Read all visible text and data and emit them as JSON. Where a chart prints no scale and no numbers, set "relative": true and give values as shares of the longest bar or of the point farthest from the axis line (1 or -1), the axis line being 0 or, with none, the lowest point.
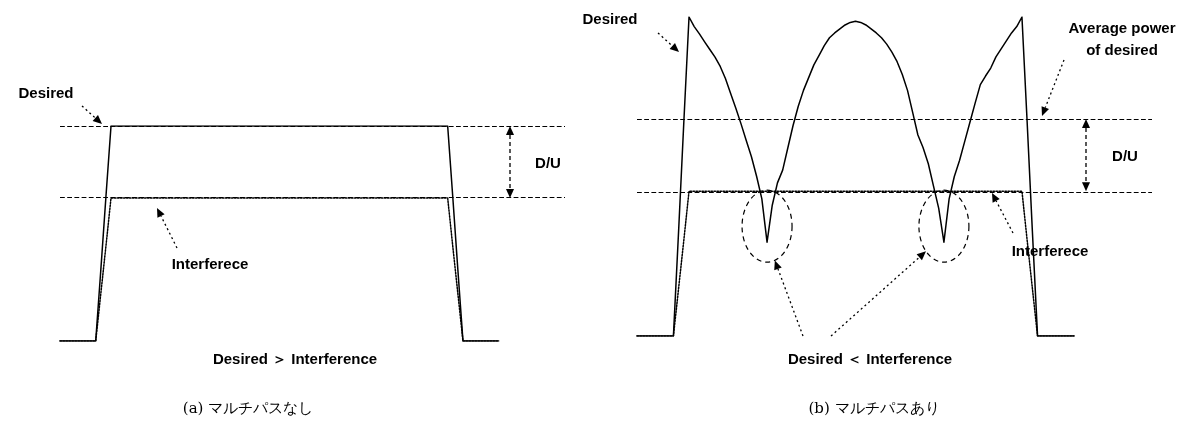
{
  "chart_data": [
    {
      "type": "line",
      "title": "(a) マルチパスなし",
      "relative": true,
      "categories": [
        null,
        null,
        null,
        null,
        null,
        null,
        null,
        null,
        null,
        null,
        null,
        null,
        null,
        null,
        null,
        null,
        null,
        null,
        null,
        null,
        null,
        null,
        null,
        null,
        null,
        null,
        null,
        null,
        null,
        null,
        null,
        null,
        null,
        null,
        null,
        null,
        null,
        null,
        null,
        null,
        null,
        null,
        null,
        null,
        null,
        null,
        null,
        null,
        null,
        null,
        null,
        null,
        null,
        null,
        null,
        null,
        null,
        null,
        null,
        null,
        null,
        null,
        null,
        null,
        null,
        null,
        null,
        null,
        null,
        null,
        null,
        null,
        null,
        null,
        null,
        null,
        null,
        null,
        null,
        null,
        null,
        null,
        null,
        null,
        null,
        null,
        null,
        null,
        null,
        null,
        null,
        null,
        null,
        null,
        null,
        null,
        null,
        null,
        null,
        null
      ],
      "series": [
        {
          "color": "#000000",
          "line_style": "solid",
          "values": [
            0,
            0,
            0,
            0,
            0,
            0,
            0,
            0,
            0.33,
            0.67,
            1,
            1,
            1,
            1,
            1,
            1,
            1,
            1,
            1,
            1,
            1,
            1,
            1,
            1,
            1,
            1,
            1,
            1,
            1,
            1,
            1,
            1,
            1,
            1,
            1,
            1,
            1,
            1,
            1,
            1,
            1,
            1,
            1,
            1,
            1,
            1,
            1,
            1,
            1,
            1,
            1,
            1,
            1,
            1,
            1,
            1,
            1,
            1,
            1,
            1,
            1,
            1,
            1,
            1,
            1,
            1,
            1,
            1,
            1,
            1,
            1,
            1,
            1,
            1,
            1,
            1,
            1,
            0.67,
            0.33,
            0,
            0,
            0,
            0,
            0,
            0,
            0,
            0,
            null,
            null,
            null,
            null,
            null,
            null,
            null,
            null,
            null,
            null,
            null,
            null,
            null
          ]
        },
        {
          "color": "#000000",
          "line_style": "dotted",
          "values": [
            0,
            0,
            0,
            0,
            0,
            0,
            0,
            0,
            0.22,
            0.44,
            0.665,
            0.665,
            0.665,
            0.665,
            0.665,
            0.665,
            0.665,
            0.665,
            0.665,
            0.665,
            0.665,
            0.665,
            0.665,
            0.665,
            0.665,
            0.665,
            0.665,
            0.665,
            0.665,
            0.665,
            0.665,
            0.665,
            0.665,
            0.665,
            0.665,
            0.665,
            0.665,
            0.665,
            0.665,
            0.665,
            0.665,
            0.665,
            0.665,
            0.665,
            0.665,
            0.665,
            0.665,
            0.665,
            0.665,
            0.665,
            0.665,
            0.665,
            0.665,
            0.665,
            0.665,
            0.665,
            0.665,
            0.665,
            0.665,
            0.665,
            0.665,
            0.665,
            0.665,
            0.665,
            0.665,
            0.665,
            0.665,
            0.665,
            0.665,
            0.665,
            0.665,
            0.665,
            0.665,
            0.665,
            0.665,
            0.665,
            0.665,
            0.44,
            0.22,
            0,
            0,
            0,
            0,
            0,
            0,
            0,
            0,
            null,
            null,
            null,
            null,
            null,
            null,
            null,
            null,
            null,
            null,
            null,
            null,
            null
          ]
        }
      ],
      "ref_lines": [
        {
          "axis": "y",
          "value": 1,
          "color": "#000000",
          "line_style": "dashed"
        },
        {
          "axis": "y",
          "value": 0.665,
          "color": "#000000",
          "line_style": "dashed"
        }
      ],
      "annotations": [
        "Desired",
        "Interferece",
        "D/U",
        "Desired ＞ Interference"
      ]
    },
    {
      "type": "line",
      "title": "(b) マルチパスあり",
      "relative": true,
      "categories": [
        null,
        null,
        null,
        null,
        null,
        null,
        null,
        null,
        null,
        null,
        null,
        null,
        null,
        null,
        null,
        null,
        null,
        null,
        null,
        null,
        null,
        null,
        null,
        null,
        null,
        null,
        null,
        null,
        null,
        null,
        null,
        null,
        null,
        null,
        null,
        null,
        null,
        null,
        null,
        null,
        null,
        null,
        null,
        null,
        null,
        null,
        null,
        null,
        null,
        null,
        null,
        null,
        null,
        null,
        null,
        null,
        null,
        null,
        null,
        null,
        null,
        null,
        null,
        null,
        null,
        null,
        null,
        null,
        null,
        null,
        null,
        null,
        null,
        null,
        null,
        null,
        null,
        null,
        null,
        null,
        null,
        null,
        null,
        null,
        null,
        null,
        null,
        null,
        null,
        null,
        null,
        null,
        null,
        null,
        null,
        null,
        null,
        null,
        null,
        null
      ],
      "series": [
        {
          "color": "#000000",
          "line_style": "solid",
          "values": [
            0,
            0,
            0,
            0,
            0,
            0,
            0,
            0,
            0.33,
            0.67,
            1,
            0.97,
            0.947,
            0.922,
            0.898,
            0.874,
            0.845,
            0.807,
            0.76,
            0.714,
            0.665,
            0.613,
            0.562,
            0.5,
            0.43,
            0.294,
            0.41,
            0.48,
            0.52,
            0.59,
            0.66,
            0.72,
            0.77,
            0.81,
            0.85,
            0.88,
            0.91,
            0.935,
            0.95,
            0.963,
            0.975,
            0.983,
            0.987,
            0.983,
            0.975,
            0.963,
            0.95,
            0.935,
            0.915,
            0.89,
            0.86,
            0.82,
            0.77,
            0.7,
            0.63,
            0.59,
            0.54,
            0.47,
            0.4,
            0.294,
            0.43,
            0.5,
            0.55,
            0.61,
            0.67,
            0.73,
            0.788,
            0.815,
            0.84,
            0.875,
            0.9,
            0.925,
            0.95,
            0.97,
            1,
            0.67,
            0.33,
            0,
            0,
            0,
            0,
            0,
            0,
            0,
            0,
            null,
            null,
            null,
            null,
            null,
            null,
            null,
            null,
            null,
            null,
            null,
            null,
            null,
            null,
            null
          ]
        },
        {
          "color": "#000000",
          "line_style": "dotted",
          "values": [
            0,
            0,
            0,
            0,
            0,
            0,
            0,
            0,
            0.15,
            0.3,
            0.454,
            0.454,
            0.454,
            0.454,
            0.454,
            0.454,
            0.454,
            0.454,
            0.454,
            0.454,
            0.454,
            0.454,
            0.454,
            0.454,
            0.454,
            0.454,
            0.454,
            0.454,
            0.454,
            0.454,
            0.454,
            0.454,
            0.454,
            0.454,
            0.454,
            0.454,
            0.454,
            0.454,
            0.454,
            0.454,
            0.454,
            0.454,
            0.454,
            0.454,
            0.454,
            0.454,
            0.454,
            0.454,
            0.454,
            0.454,
            0.454,
            0.454,
            0.454,
            0.454,
            0.454,
            0.454,
            0.454,
            0.454,
            0.454,
            0.454,
            0.454,
            0.454,
            0.454,
            0.454,
            0.454,
            0.454,
            0.454,
            0.454,
            0.454,
            0.454,
            0.454,
            0.454,
            0.454,
            0.454,
            0.454,
            0.3,
            0.15,
            0,
            0,
            0,
            0,
            0,
            0,
            0,
            0,
            null,
            null,
            null,
            null,
            null,
            null,
            null,
            null,
            null,
            null,
            null,
            null,
            null,
            null,
            null
          ]
        }
      ],
      "ref_lines": [
        {
          "axis": "y",
          "value": 0.68,
          "color": "#000000",
          "line_style": "dashed"
        },
        {
          "axis": "y",
          "value": 0.454,
          "color": "#000000",
          "line_style": "dashed"
        }
      ],
      "annotations": [
        "Desired",
        "Average power\nof desired",
        "Interferece",
        "D/U",
        "Desired ＜ Interference"
      ]
    }
  ]
}
